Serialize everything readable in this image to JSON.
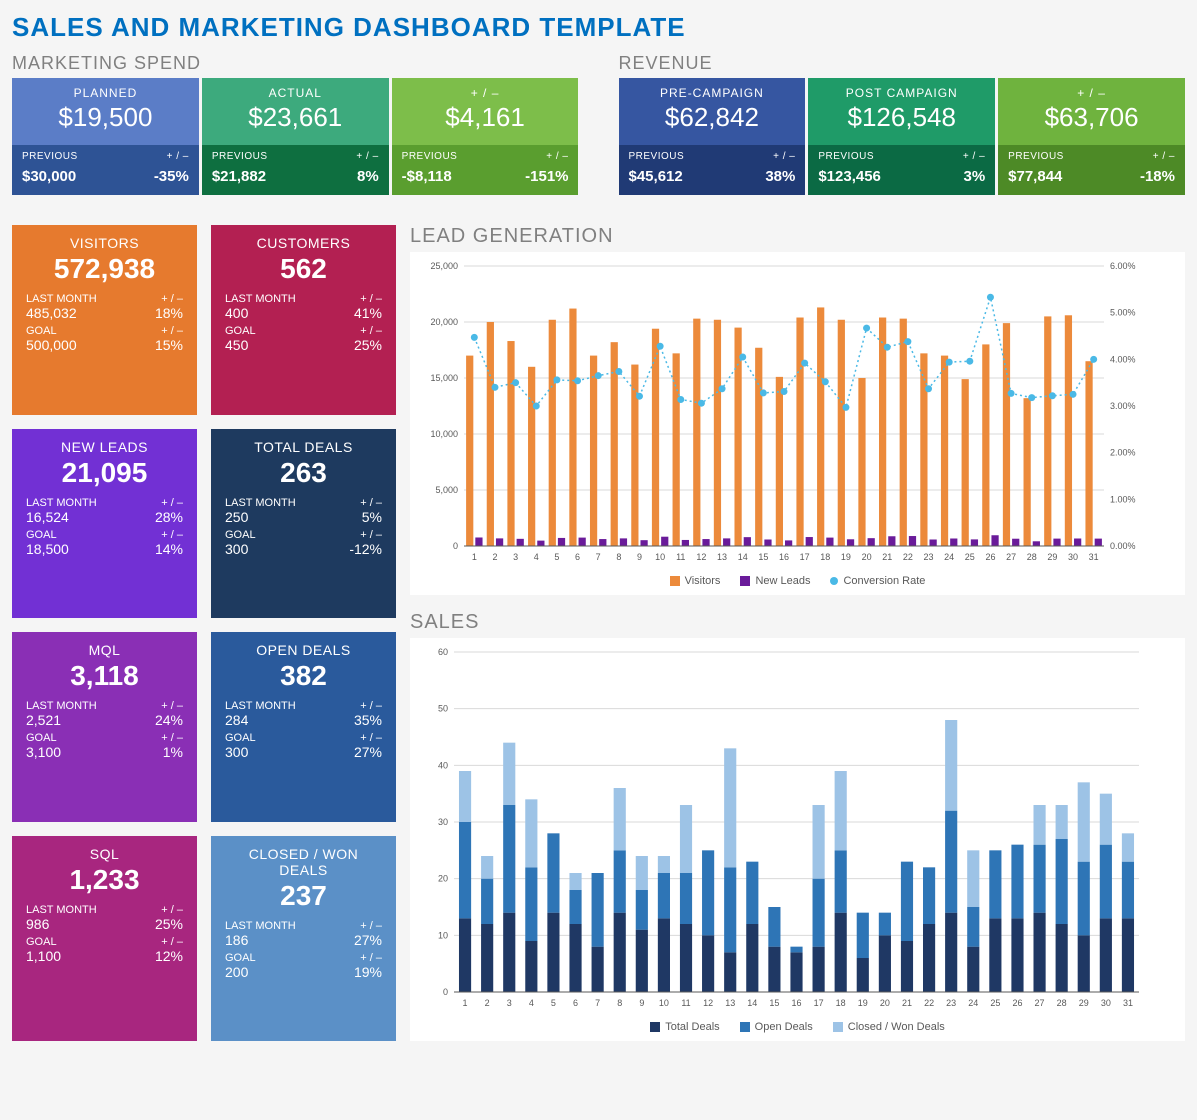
{
  "title": "SALES AND MARKETING DASHBOARD TEMPLATE",
  "marketing_spend": {
    "heading": "MARKETING SPEND",
    "cards": [
      {
        "label": "PLANNED",
        "value": "$19,500",
        "top_bg": "#5b7dc7",
        "bot_bg": "#2e5395",
        "prev_label": "PREVIOUS",
        "prev": "$30,000",
        "diff_label": "+ / –",
        "diff": "-35%"
      },
      {
        "label": "ACTUAL",
        "value": "$23,661",
        "top_bg": "#3daa7d",
        "bot_bg": "#0e6f40",
        "prev_label": "PREVIOUS",
        "prev": "$21,882",
        "diff_label": "+ / –",
        "diff": "8%"
      },
      {
        "label": "+ / –",
        "value": "$4,161",
        "top_bg": "#7dbe4a",
        "bot_bg": "#5a9e2f",
        "prev_label": "PREVIOUS",
        "prev": "-$8,118",
        "diff_label": "+ / –",
        "diff": "-151%"
      }
    ]
  },
  "revenue": {
    "heading": "REVENUE",
    "cards": [
      {
        "label": "PRE-CAMPAIGN",
        "value": "$62,842",
        "top_bg": "#3656a1",
        "bot_bg": "#203a75",
        "prev_label": "PREVIOUS",
        "prev": "$45,612",
        "diff_label": "+ / –",
        "diff": "38%"
      },
      {
        "label": "POST CAMPAIGN",
        "value": "$126,548",
        "top_bg": "#1f9b68",
        "bot_bg": "#0b6a44",
        "prev_label": "PREVIOUS",
        "prev": "$123,456",
        "diff_label": "+ / –",
        "diff": "3%"
      },
      {
        "label": "+ / –",
        "value": "$63,706",
        "top_bg": "#6fb33e",
        "bot_bg": "#4d8a26",
        "prev_label": "PREVIOUS",
        "prev": "$77,844",
        "diff_label": "+ / –",
        "diff": "-18%"
      }
    ]
  },
  "kpis": [
    {
      "title": "VISITORS",
      "value": "572,938",
      "bg": "#e67a2e",
      "lm_label": "LAST MONTH",
      "lm": "485,032",
      "lm_diff": "18%",
      "goal_label": "GOAL",
      "goal": "500,000",
      "goal_diff": "15%",
      "diff_label": "+ / –"
    },
    {
      "title": "CUSTOMERS",
      "value": "562",
      "bg": "#b32052",
      "lm_label": "LAST MONTH",
      "lm": "400",
      "lm_diff": "41%",
      "goal_label": "GOAL",
      "goal": "450",
      "goal_diff": "25%",
      "diff_label": "+ / –"
    },
    {
      "title": "NEW LEADS",
      "value": "21,095",
      "bg": "#7230d4",
      "lm_label": "LAST MONTH",
      "lm": "16,524",
      "lm_diff": "28%",
      "goal_label": "GOAL",
      "goal": "18,500",
      "goal_diff": "14%",
      "diff_label": "+ / –"
    },
    {
      "title": "TOTAL DEALS",
      "value": "263",
      "bg": "#1e3a5f",
      "lm_label": "LAST MONTH",
      "lm": "250",
      "lm_diff": "5%",
      "goal_label": "GOAL",
      "goal": "300",
      "goal_diff": "-12%",
      "diff_label": "+ / –"
    },
    {
      "title": "MQL",
      "value": "3,118",
      "bg": "#8a2fb5",
      "lm_label": "LAST MONTH",
      "lm": "2,521",
      "lm_diff": "24%",
      "goal_label": "GOAL",
      "goal": "3,100",
      "goal_diff": "1%",
      "diff_label": "+ / –"
    },
    {
      "title": "OPEN DEALS",
      "value": "382",
      "bg": "#2a5a9c",
      "lm_label": "LAST MONTH",
      "lm": "284",
      "lm_diff": "35%",
      "goal_label": "GOAL",
      "goal": "300",
      "goal_diff": "27%",
      "diff_label": "+ / –"
    },
    {
      "title": "SQL",
      "value": "1,233",
      "bg": "#a8267f",
      "lm_label": "LAST MONTH",
      "lm": "986",
      "lm_diff": "25%",
      "goal_label": "GOAL",
      "goal": "1,100",
      "goal_diff": "12%",
      "diff_label": "+ / –"
    },
    {
      "title": "CLOSED / WON DEALS",
      "value": "237",
      "bg": "#5b90c7",
      "lm_label": "LAST MONTH",
      "lm": "186",
      "lm_diff": "27%",
      "goal_label": "GOAL",
      "goal": "200",
      "goal_diff": "19%",
      "diff_label": "+ / –"
    }
  ],
  "lead_chart": {
    "title": "LEAD GENERATION",
    "days": [
      1,
      2,
      3,
      4,
      5,
      6,
      7,
      8,
      9,
      10,
      11,
      12,
      13,
      14,
      15,
      16,
      17,
      18,
      19,
      20,
      21,
      22,
      23,
      24,
      25,
      26,
      27,
      28,
      29,
      30,
      31
    ],
    "visitors": [
      17000,
      20000,
      18300,
      16000,
      20200,
      21200,
      17000,
      18200,
      16200,
      19400,
      17200,
      20300,
      20200,
      19500,
      17700,
      15100,
      20400,
      21300,
      20200,
      15000,
      20400,
      20300,
      17200,
      17000,
      14900,
      18000,
      19900,
      13200,
      20500,
      20600,
      16500
    ],
    "new_leads": [
      760,
      680,
      640,
      480,
      720,
      750,
      620,
      680,
      520,
      830,
      540,
      620,
      680,
      790,
      580,
      500,
      800,
      750,
      600,
      700,
      870,
      890,
      580,
      670,
      590,
      960,
      650,
      420,
      660,
      670,
      660
    ],
    "conversion": [
      4.47,
      3.4,
      3.5,
      3.0,
      3.56,
      3.54,
      3.65,
      3.74,
      3.21,
      4.28,
      3.14,
      3.06,
      3.37,
      4.05,
      3.28,
      3.31,
      3.92,
      3.52,
      2.97,
      4.67,
      4.26,
      4.38,
      3.37,
      3.94,
      3.96,
      5.33,
      3.27,
      3.18,
      3.22,
      3.25,
      4.0
    ],
    "visitors_color": "#ec8a3b",
    "leads_color": "#6a1b9a",
    "conversion_color": "#4ab9e6",
    "grid_color": "#d9d9d9",
    "y_left_max": 25000,
    "y_left_step": 5000,
    "y_right_max": 6.0,
    "y_right_step": 1.0,
    "legend": {
      "visitors": "Visitors",
      "leads": "New Leads",
      "conv": "Conversion Rate"
    }
  },
  "sales_chart": {
    "title": "SALES",
    "days": [
      1,
      2,
      3,
      4,
      5,
      6,
      7,
      8,
      9,
      10,
      11,
      12,
      13,
      14,
      15,
      16,
      17,
      18,
      19,
      20,
      21,
      22,
      23,
      24,
      25,
      26,
      27,
      28,
      29,
      30,
      31
    ],
    "total": [
      13,
      12,
      14,
      9,
      14,
      12,
      8,
      14,
      11,
      13,
      12,
      10,
      7,
      12,
      8,
      7,
      8,
      14,
      6,
      10,
      9,
      12,
      14,
      8,
      13,
      13,
      14,
      12,
      10,
      13,
      13
    ],
    "open": [
      17,
      8,
      19,
      13,
      14,
      6,
      13,
      11,
      7,
      8,
      9,
      15,
      15,
      11,
      7,
      1,
      12,
      11,
      8,
      4,
      14,
      10,
      18,
      7,
      12,
      13,
      12,
      15,
      13,
      13,
      10
    ],
    "closed": [
      9,
      4,
      11,
      12,
      0,
      3,
      0,
      11,
      6,
      3,
      12,
      0,
      21,
      0,
      0,
      0,
      13,
      14,
      0,
      0,
      0,
      0,
      16,
      10,
      0,
      0,
      7,
      6,
      14,
      9,
      5
    ],
    "total_color": "#1f3864",
    "open_color": "#2e75b6",
    "closed_color": "#9dc3e6",
    "grid_color": "#d9d9d9",
    "y_max": 60,
    "y_step": 10,
    "legend": {
      "total": "Total Deals",
      "open": "Open Deals",
      "closed": "Closed / Won Deals"
    }
  }
}
